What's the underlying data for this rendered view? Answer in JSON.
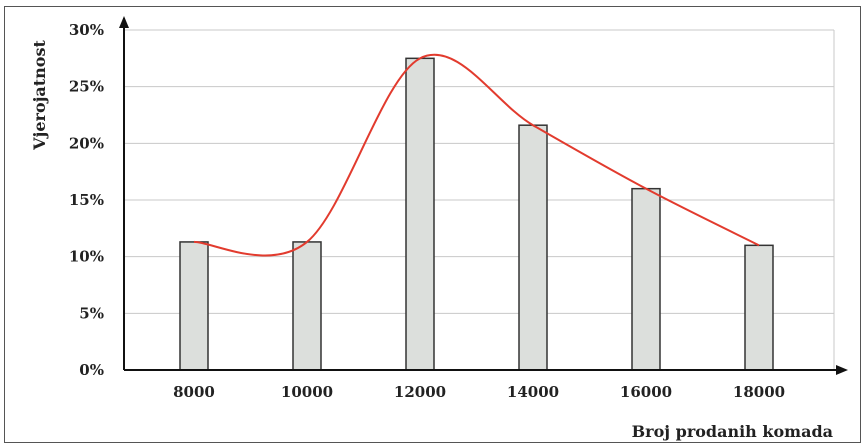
{
  "chart_data": {
    "type": "bar",
    "title": "",
    "xlabel": "Broj prodanih komada",
    "ylabel": "Vjerojatnost",
    "categories": [
      "8000",
      "10000",
      "12000",
      "14000",
      "16000",
      "18000"
    ],
    "values": [
      11.3,
      11.3,
      27.5,
      21.6,
      16.0,
      11.0
    ],
    "yticks": [
      "0%",
      "5%",
      "10%",
      "15%",
      "20%",
      "25%",
      "30%"
    ],
    "ylim": [
      0,
      30
    ],
    "grid": true,
    "trend_line": true,
    "colors": {
      "bar_fill": "#dcdfdc",
      "bar_stroke": "#333333",
      "curve": "#e23b2e",
      "grid": "#c8c8c8",
      "axis": "#111111"
    }
  }
}
